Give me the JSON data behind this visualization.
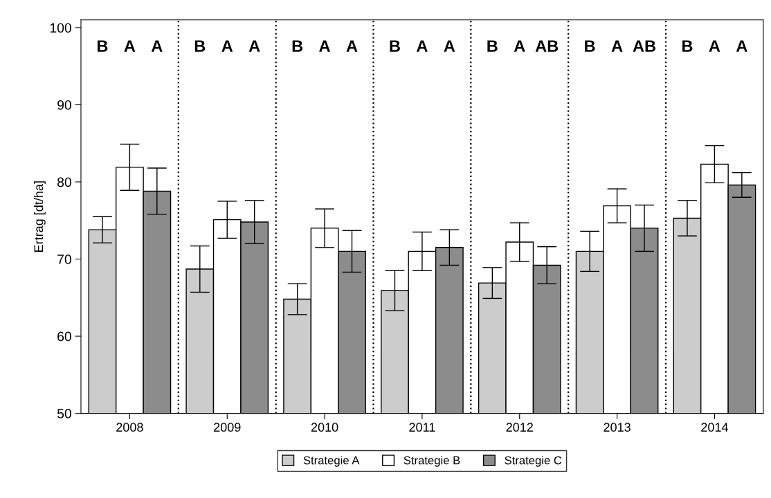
{
  "chart_data": {
    "type": "bar",
    "ylabel": "Ertrag [dt/ha]",
    "categories": [
      "2008",
      "2009",
      "2010",
      "2011",
      "2012",
      "2013",
      "2014"
    ],
    "series": [
      {
        "name": "Strategie A",
        "color": "#cccccc",
        "values": [
          73.8,
          68.7,
          64.8,
          65.9,
          66.9,
          71.0,
          75.3
        ],
        "errors": [
          1.7,
          3.0,
          2.0,
          2.6,
          2.0,
          2.6,
          2.3
        ]
      },
      {
        "name": "Strategie B",
        "color": "#ffffff",
        "values": [
          81.9,
          75.1,
          74.0,
          71.0,
          72.2,
          76.9,
          82.3
        ],
        "errors": [
          3.0,
          2.4,
          2.5,
          2.5,
          2.5,
          2.2,
          2.4
        ]
      },
      {
        "name": "Strategie C",
        "color": "#8c8c8c",
        "values": [
          78.8,
          74.8,
          71.0,
          71.5,
          69.2,
          74.0,
          79.6
        ],
        "errors": [
          3.0,
          2.8,
          2.7,
          2.3,
          2.4,
          3.0,
          1.6
        ]
      }
    ],
    "ylim": [
      50,
      101
    ],
    "yticks": [
      50,
      60,
      70,
      80,
      90,
      100
    ],
    "grid": false,
    "legend": "bottom",
    "annotations": [
      "B",
      "A",
      "A",
      "B",
      "A",
      "A",
      "B",
      "A",
      "A",
      "B",
      "A",
      "A",
      "B",
      "A",
      "AB",
      "B",
      "A",
      "AB",
      "B",
      "A",
      "A"
    ]
  }
}
